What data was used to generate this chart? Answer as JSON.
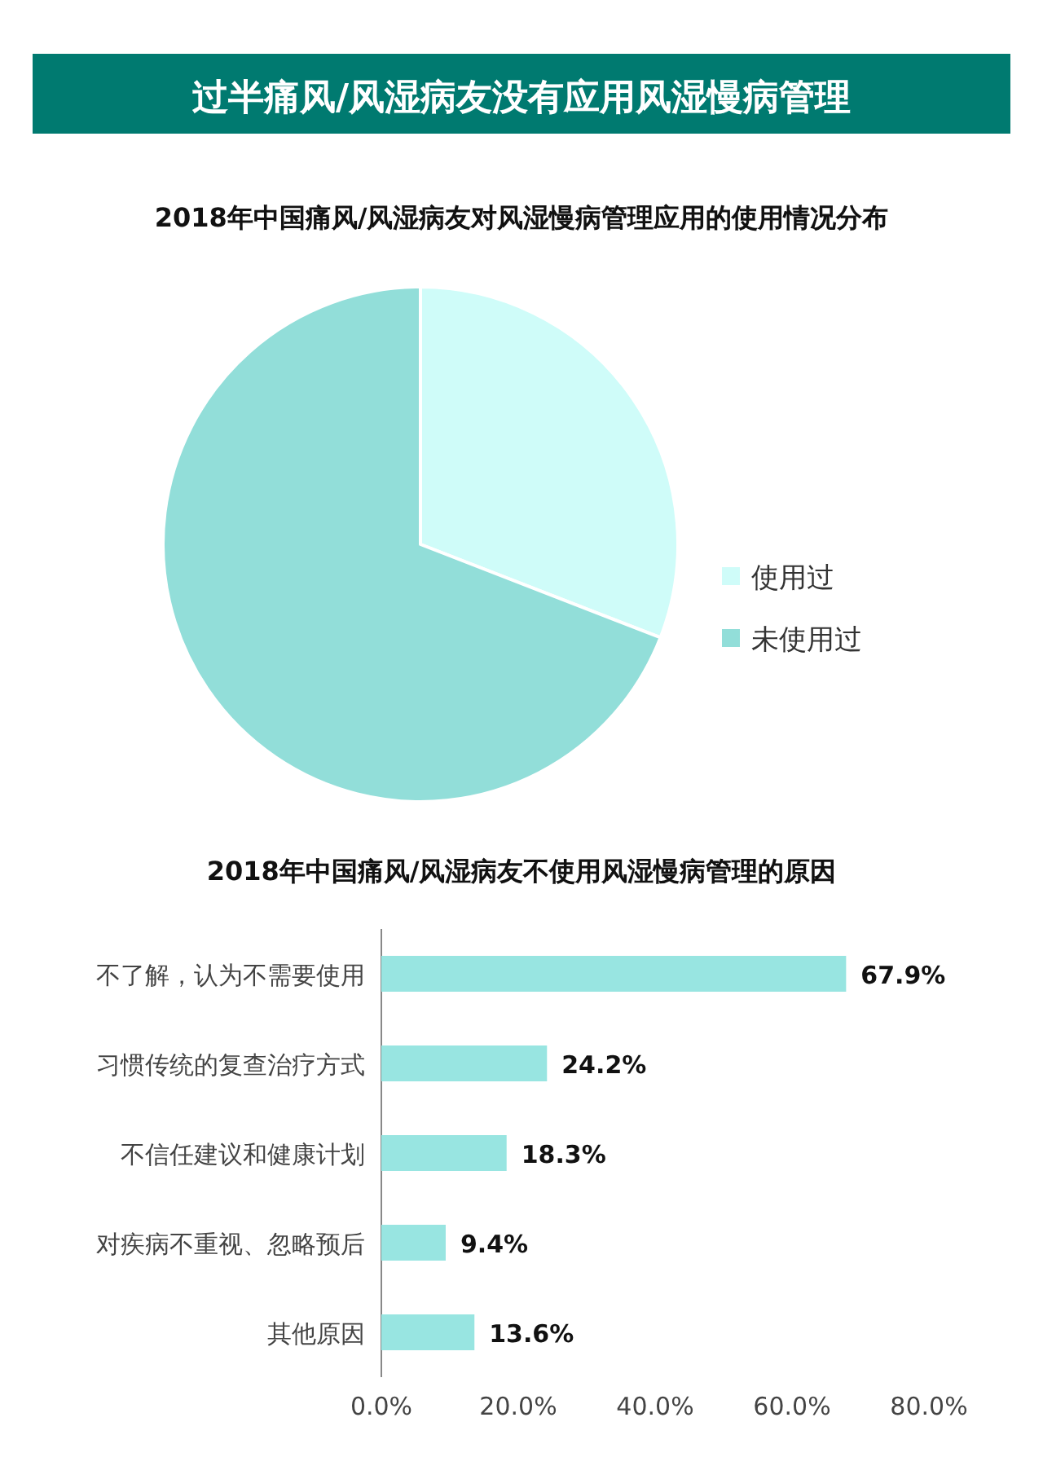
{
  "chart_data": [
    {
      "type": "pie",
      "title": "过半痛风/风湿病友没有应用风湿慢病管理",
      "subtitle": "2018年中国痛风/风湿病友对风湿慢病管理应用的使用情况分布",
      "categories": [
        "使用过",
        "未使用过"
      ],
      "values": [
        30.9,
        69.1
      ],
      "colors": [
        "#cffcf9",
        "#92ded9"
      ],
      "legend": "right"
    },
    {
      "type": "bar",
      "title": "2018年中国痛风/风湿病友不使用风湿慢病管理的原因",
      "orientation": "horizontal",
      "categories": [
        "不了解，认为不需要使用",
        "习惯传统的复查治疗方式",
        "不信任建议和健康计划",
        "对疾病不重视、忽略预后",
        "其他原因"
      ],
      "values": [
        67.9,
        24.2,
        18.3,
        9.4,
        13.6
      ],
      "value_labels": [
        "67.9%",
        "24.2%",
        "18.3%",
        "9.4%",
        "13.6%"
      ],
      "color": "#98e5e1",
      "xlim": [
        0,
        80
      ],
      "xticks": [
        {
          "value": 0,
          "label": "0.0%"
        },
        {
          "value": 20,
          "label": "20.0%"
        },
        {
          "value": 40,
          "label": "40.0%"
        },
        {
          "value": 60,
          "label": "60.0%"
        },
        {
          "value": 80,
          "label": "80.0%"
        }
      ]
    }
  ]
}
